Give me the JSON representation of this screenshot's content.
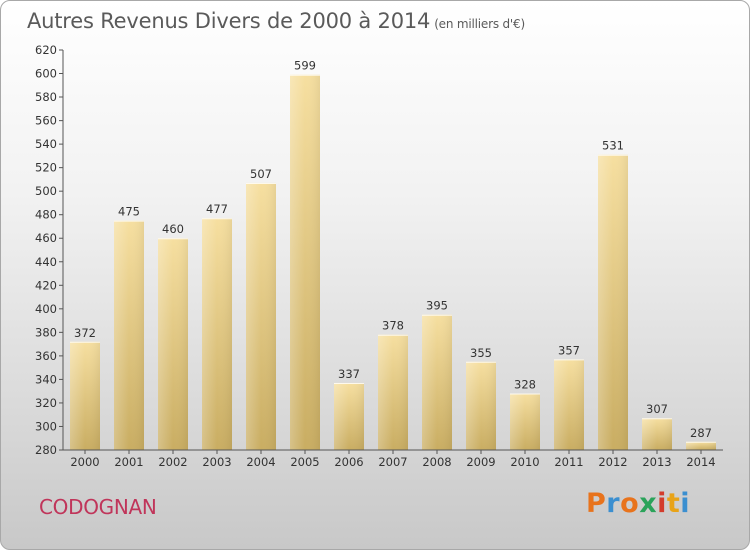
{
  "header": {
    "title": "Autres Revenus Divers de 2000 à 2014",
    "subtitle": "(en milliers d'€)"
  },
  "footer": {
    "town": "CODOGNAN",
    "logo": "Proxiti",
    "logo_colors": [
      "#e8731c",
      "#3b8fd0",
      "#e8731c",
      "#2aa35a",
      "#d33c2c",
      "#e8a318",
      "#3b8fd0"
    ]
  },
  "colors": {
    "bar_light": "#f6dfa0",
    "bar_dark": "#c9ad62",
    "text": "#333333",
    "town": "#c0355a"
  },
  "chart_data": {
    "type": "bar",
    "categories": [
      "2000",
      "2001",
      "2002",
      "2003",
      "2004",
      "2005",
      "2006",
      "2007",
      "2008",
      "2009",
      "2010",
      "2011",
      "2012",
      "2013",
      "2014"
    ],
    "values": [
      372,
      475,
      460,
      477,
      507,
      599,
      337,
      378,
      395,
      355,
      328,
      357,
      531,
      307,
      287
    ],
    "title": "Autres Revenus Divers de 2000 à 2014",
    "xlabel": "",
    "ylabel": "",
    "ylim": [
      280,
      620
    ],
    "yticks": [
      280,
      300,
      320,
      340,
      360,
      380,
      400,
      420,
      440,
      460,
      480,
      500,
      520,
      540,
      560,
      580,
      600,
      620
    ],
    "grid": false,
    "data_labels": true
  }
}
